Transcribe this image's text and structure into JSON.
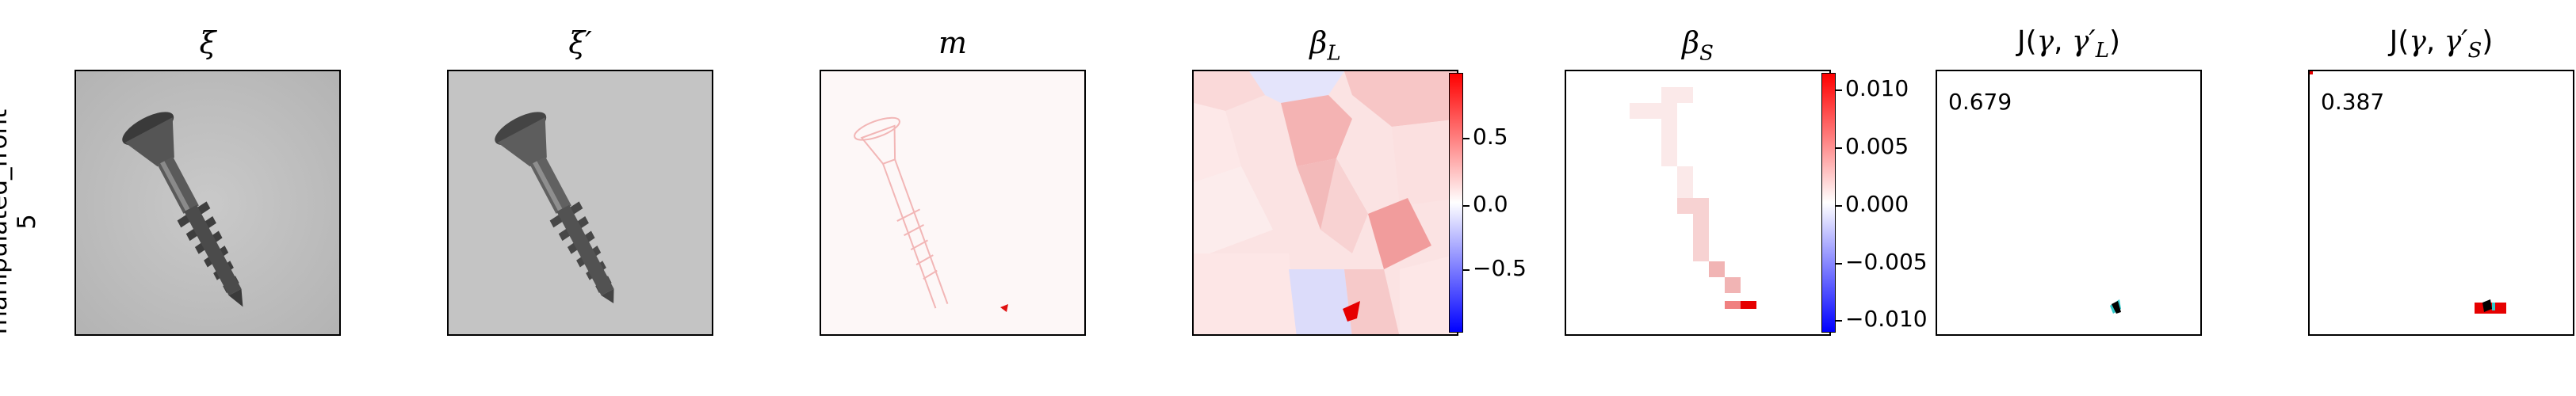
{
  "row_label": {
    "line1": "manipulated_front",
    "line2": "5"
  },
  "panels": {
    "xi": {
      "title": "ξ"
    },
    "xi_prime": {
      "title": "ξ′"
    },
    "m": {
      "title": "m"
    },
    "beta_L": {
      "title_main": "β",
      "title_sub": "L",
      "colorbar": {
        "ticks": [
          "0.5",
          "0.0",
          "−0.5"
        ],
        "colors": [
          "#0000ff",
          "#ffffff",
          "#ff0000"
        ]
      }
    },
    "beta_S": {
      "title_main": "β",
      "title_sub": "S",
      "colorbar": {
        "ticks": [
          "0.010",
          "0.005",
          "0.000",
          "−0.005",
          "−0.010"
        ],
        "colors": [
          "#0000ff",
          "#ffffff",
          "#ff0000"
        ]
      }
    },
    "J_L": {
      "title_prefix": "J(",
      "title_gamma": "γ",
      "title_sep": ", ",
      "title_gamma2": "γ′",
      "title_sub": "L",
      "title_suffix": ")",
      "score": "0.679"
    },
    "J_S": {
      "title_prefix": "J(",
      "title_gamma": "γ",
      "title_sep": ", ",
      "title_gamma2": "γ′",
      "title_sub": "S",
      "title_suffix": ")",
      "score": "0.387"
    }
  }
}
